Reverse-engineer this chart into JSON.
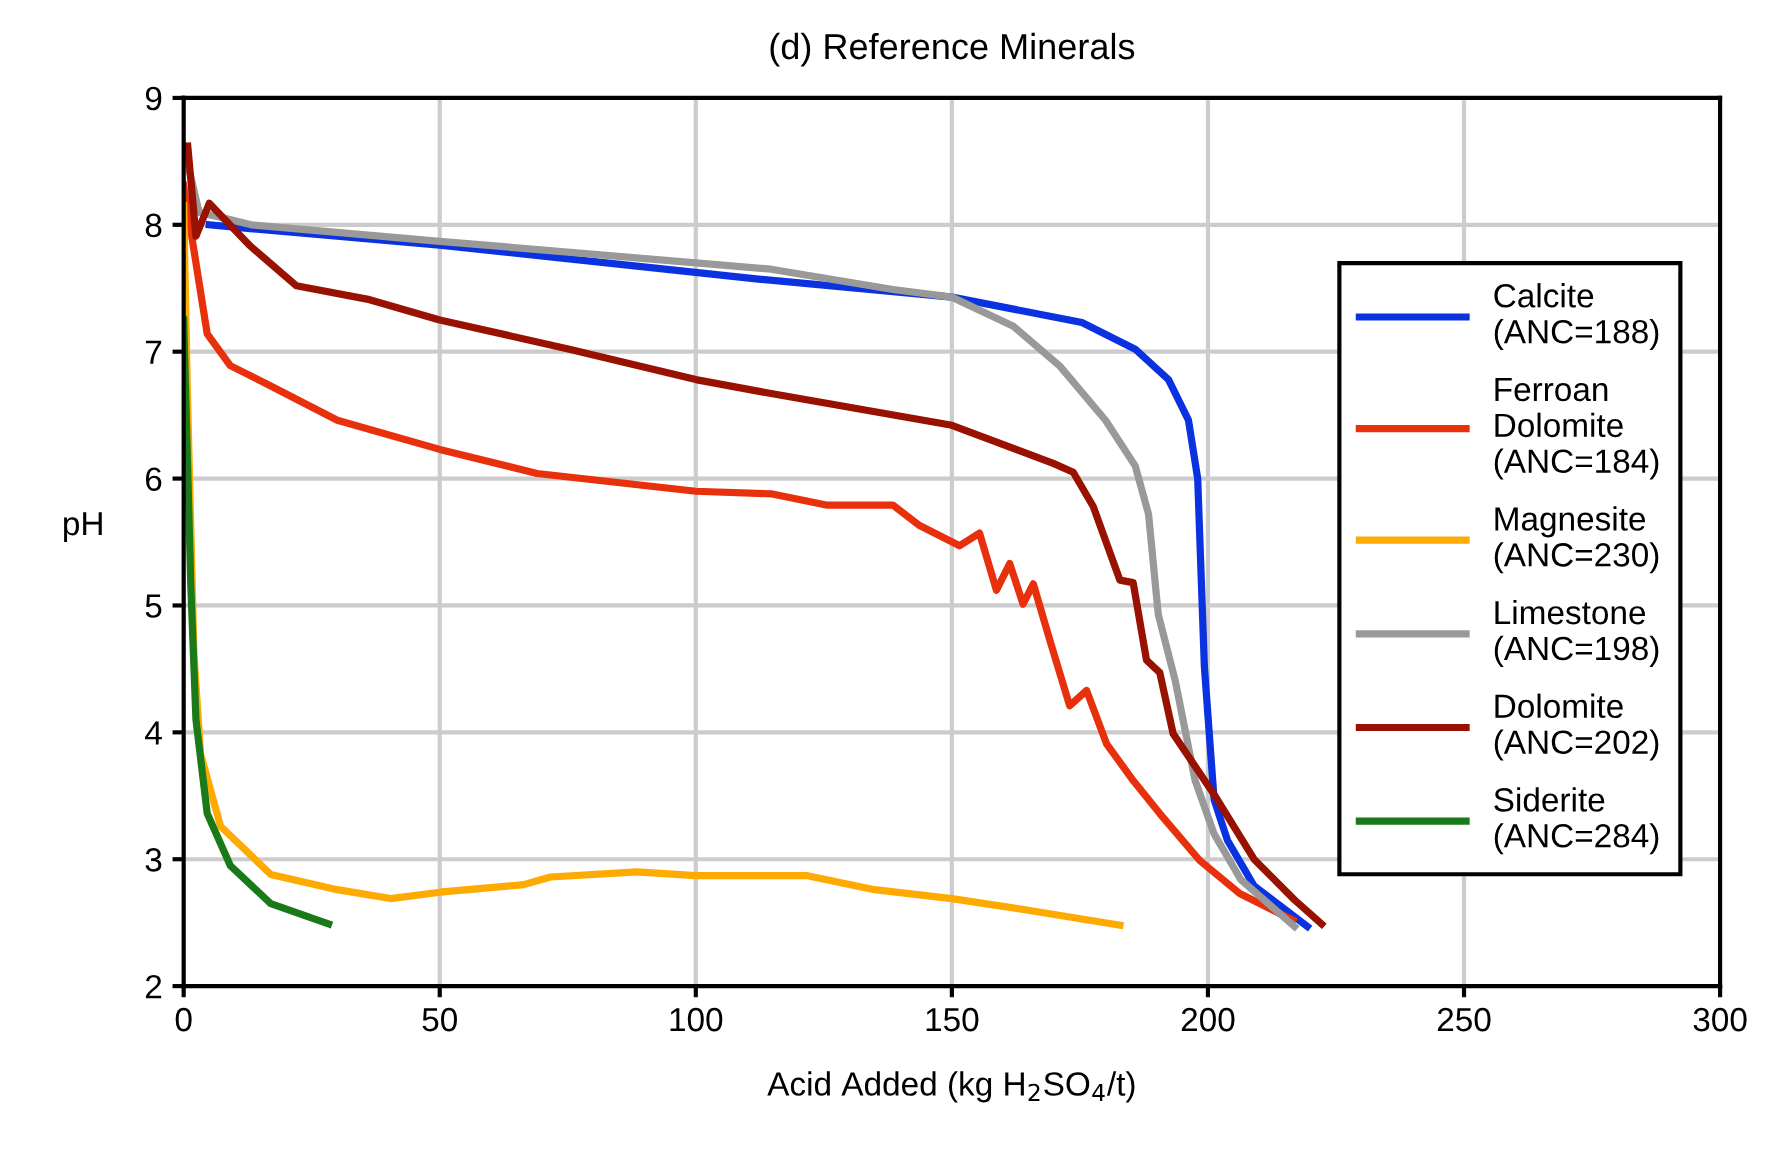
{
  "chart_data": {
    "type": "line",
    "title": "(d) Reference Minerals",
    "xlabel": "Acid Added (kg H$_{2}$SO$_{4}$/t)",
    "ylabel": "pH",
    "xlim": [
      0,
      300
    ],
    "xticks": [
      0,
      50,
      100,
      150,
      200,
      250,
      300
    ],
    "ylim": [
      2,
      9
    ],
    "yticks": [
      2,
      3,
      4,
      5,
      6,
      7,
      8,
      9
    ],
    "grid": true,
    "legend": "right",
    "marker": "none",
    "line_style": "solid",
    "series": [
      {
        "name": "Calcite\n(ANC=188)",
        "color": "#0a32e0",
        "x": [
          5,
          13,
          50,
          112.7,
          150,
          175.4,
          185.8,
          192.3,
          196.2,
          198,
          199.3,
          201.2,
          203.8,
          209,
          214.2,
          219.4
        ],
        "values": [
          8.0,
          7.97,
          7.84,
          7.57,
          7.43,
          7.23,
          7.02,
          6.78,
          6.46,
          6.0,
          4.52,
          3.47,
          3.15,
          2.79,
          2.63,
          2.47
        ]
      },
      {
        "name": "Ferroan\nDolomite\n(ANC=184)",
        "color": "#e8300c",
        "x": [
          0,
          4.6,
          9.1,
          17,
          30,
          50,
          69,
          100,
          114.7,
          125.7,
          138.5,
          143.7,
          151.5,
          155.4,
          158.7,
          161.3,
          163.9,
          165.9,
          169.1,
          173,
          176.3,
          180.2,
          185.4,
          190.6,
          198.4,
          206.2,
          216.6
        ],
        "values": [
          8.31,
          7.14,
          6.89,
          6.73,
          6.46,
          6.23,
          6.04,
          5.9,
          5.88,
          5.79,
          5.79,
          5.63,
          5.47,
          5.57,
          5.12,
          5.33,
          5.01,
          5.17,
          4.73,
          4.21,
          4.33,
          3.91,
          3.62,
          3.36,
          2.99,
          2.73,
          2.52
        ]
      },
      {
        "name": "Magnesite\n(ANC=230)",
        "color": "#ffaa00",
        "x": [
          0,
          0.7,
          2,
          3.3,
          7.2,
          17,
          30,
          40.4,
          50,
          66.4,
          71.6,
          88.5,
          100,
          112.7,
          121.8,
          134.9,
          150,
          164.6,
          182.8
        ],
        "values": [
          8.15,
          6.73,
          4.62,
          3.83,
          3.26,
          2.88,
          2.76,
          2.69,
          2.74,
          2.8,
          2.86,
          2.9,
          2.87,
          2.87,
          2.87,
          2.76,
          2.69,
          2.6,
          2.48
        ]
      },
      {
        "name": "Limestone\n(ANC=198)",
        "color": "#999999",
        "x": [
          0,
          3,
          13.2,
          50,
          114.7,
          138.5,
          150,
          162,
          171,
          180,
          185.8,
          188.4,
          190.3,
          193.6,
          197.5,
          201.2,
          206.4,
          216.9
        ],
        "values": [
          8.62,
          8.1,
          8.0,
          7.87,
          7.65,
          7.49,
          7.43,
          7.2,
          6.89,
          6.46,
          6.1,
          5.72,
          4.93,
          4.41,
          3.62,
          3.2,
          2.84,
          2.47
        ]
      },
      {
        "name": "Dolomite\n(ANC=202)",
        "color": "#991100",
        "x": [
          0.8,
          2.4,
          5,
          12.8,
          22,
          36.3,
          50,
          75.3,
          100,
          114.7,
          150,
          169.8,
          173.7,
          177.6,
          182.8,
          185.4,
          188,
          190.6,
          193.2,
          201.2,
          209,
          216.9,
          222.2
        ],
        "values": [
          8.62,
          7.91,
          8.17,
          7.84,
          7.52,
          7.41,
          7.25,
          7.02,
          6.78,
          6.67,
          6.42,
          6.12,
          6.05,
          5.78,
          5.2,
          5.18,
          4.57,
          4.47,
          3.99,
          3.51,
          3.0,
          2.68,
          2.49
        ]
      },
      {
        "name": "Siderite\n(ANC=284)",
        "color": "#1a7a1a",
        "x": [
          0,
          1.4,
          2.4,
          4.6,
          9.1,
          17,
          28.3
        ],
        "values": [
          7.25,
          5.15,
          4.1,
          3.36,
          2.95,
          2.65,
          2.49
        ]
      }
    ]
  }
}
